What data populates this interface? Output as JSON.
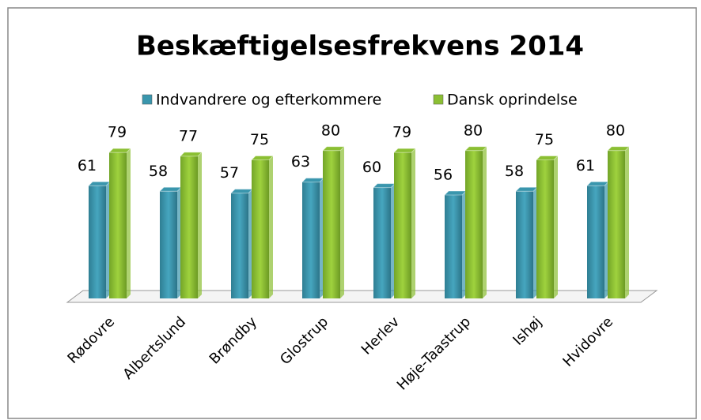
{
  "chart_data": {
    "type": "bar3d",
    "title": "Beskæftigelsesfrekvens 2014",
    "categories": [
      "Rødovre",
      "Albertslund",
      "Brøndby",
      "Glostrup",
      "Herlev",
      "Høje-Taastrup",
      "Ishøj",
      "Hvidovre"
    ],
    "series": [
      {
        "name": "Indvandrere og efterkommere",
        "color": "#3a96ad",
        "values": [
          61,
          58,
          57,
          63,
          60,
          56,
          58,
          61
        ]
      },
      {
        "name": "Dansk oprindelse",
        "color": "#8bbf33",
        "values": [
          79,
          77,
          75,
          80,
          79,
          80,
          75,
          80
        ]
      }
    ],
    "legend": "top"
  }
}
